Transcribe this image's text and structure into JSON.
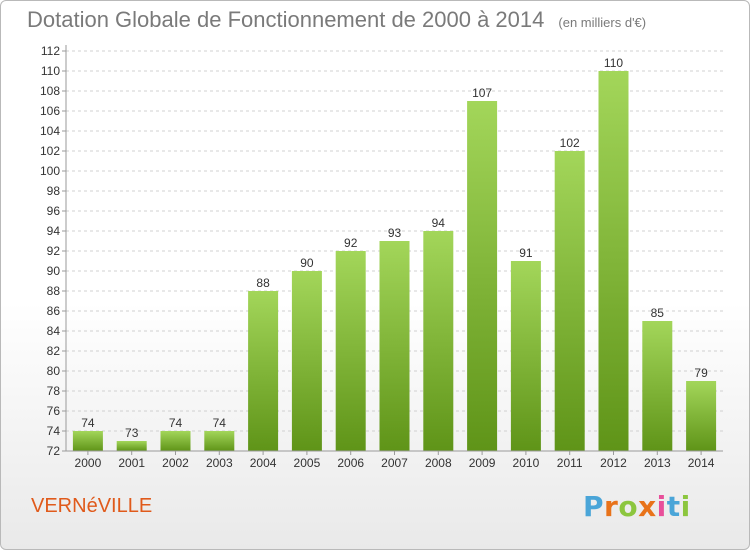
{
  "title": "Dotation Globale de Fonctionnement de 2000 à 2014",
  "unit_label": "(en milliers d'€)",
  "commune": "VERNéVILLE",
  "brand": {
    "letters": [
      "P",
      "r",
      "o",
      "x",
      "i",
      "t",
      "i"
    ],
    "colors": [
      "#4aa5d8",
      "#e8731a",
      "#8cc63e",
      "#e8731a",
      "#e84f9a",
      "#4aa5d8",
      "#8cc63e"
    ]
  },
  "colors": {
    "bar": "#82c034",
    "bar_light": "#a3d65a",
    "bar_dark": "#5f9418",
    "axis": "#9a9a9a",
    "grid": "#d0d0d0",
    "text": "#333333"
  },
  "chart_data": {
    "type": "bar",
    "categories": [
      "2000",
      "2001",
      "2002",
      "2003",
      "2004",
      "2005",
      "2006",
      "2007",
      "2008",
      "2009",
      "2010",
      "2011",
      "2012",
      "2013",
      "2014"
    ],
    "values": [
      74,
      73,
      74,
      74,
      88,
      90,
      92,
      93,
      94,
      107,
      91,
      102,
      110,
      85,
      79
    ],
    "ylim": [
      72,
      112
    ],
    "yticks": [
      72,
      74,
      76,
      78,
      80,
      82,
      84,
      86,
      88,
      90,
      92,
      94,
      96,
      98,
      100,
      102,
      104,
      106,
      108,
      110,
      112
    ],
    "grid": true,
    "legend": "none"
  }
}
